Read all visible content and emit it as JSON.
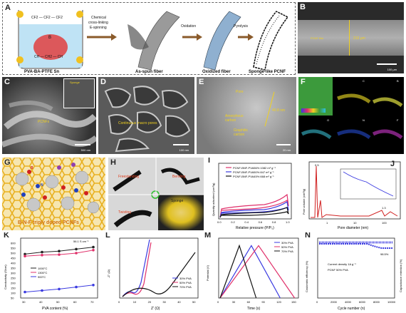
{
  "panels": {
    "A": {
      "label": "A",
      "step1": "Chemical\ncross-linking\nE-spinning",
      "step2": "Oxidation",
      "step3": "Pyrolysis",
      "caption1": "PVA-BA-PTFE Sn",
      "caption2": "As-spun fiber",
      "caption3": "Oxidized fiber",
      "caption4": "Sponge-like PCNF",
      "chem_top": "CF2 — CF2 — CF2",
      "chem_b": "B",
      "chem_bottom": "CH — CH2 — CH"
    },
    "B": {
      "label": "B",
      "film": "PCNF film",
      "thickness": "210 μm",
      "scale": "100 μm"
    },
    "C": {
      "label": "C",
      "tag": "PCNFs",
      "inset": "Sponge",
      "scale": "500 nm"
    },
    "D": {
      "label": "D",
      "tag": "Continuous macro pores",
      "scale": "100 nm"
    },
    "E": {
      "label": "E",
      "pore": "Pore",
      "amorph": "Amorphous\ncarbon",
      "graph": "Graphitic\ncarbon",
      "dist": "40.8 nm",
      "scale": "20 nm"
    },
    "F": {
      "label": "F",
      "c": "C",
      "b": "B",
      "o": "O",
      "n": "N",
      "f": "F"
    },
    "G": {
      "label": "G",
      "b": "B",
      "n": "N",
      "caption": "B-N-F triply doped PCNFs"
    },
    "H": {
      "label": "H",
      "t1": "Freestanding",
      "t2": "Bending",
      "t3": "Twisting",
      "t4": "Sponge"
    },
    "I": {
      "label": "I",
      "xlabel": "Relative pressure (P/P₀)",
      "ylabel": "Quantity adsorbed (cm³/g)",
      "legend": [
        {
          "name": "PCNF-BNF-PVA56% 1082 m² g⁻¹",
          "color": "#e0306a"
        },
        {
          "name": "PCNF-BNF-PVA50% 847 m² g⁻¹",
          "color": "#3a3ae0"
        },
        {
          "name": "PCNF-BNF-PVA45% 668 m² g⁻¹",
          "color": "#111111"
        }
      ],
      "xticks": [
        "0.0",
        "0.2",
        "0.4",
        "0.6",
        "0.8",
        "1.0"
      ]
    },
    "J": {
      "label": "J",
      "xlabel": "Pore diameter (nm)",
      "ylabel": "Pore volume (cm³/g)",
      "peak1": "0.5",
      "peak2": "1.3",
      "ticks": [
        "1",
        "10",
        "100"
      ]
    },
    "K": {
      "label": "K",
      "xlabel": "PVA content (%)",
      "ylabel": "Conductivity (S/cm)",
      "annotation": "56.1 S cm⁻¹",
      "legend": [
        "1000°C",
        "1300°C",
        "900°C"
      ],
      "xticks": [
        "30",
        "40",
        "50",
        "60",
        "70"
      ],
      "yticks": [
        "50",
        "100",
        "150",
        "200",
        "250",
        "300",
        "350",
        "400",
        "450",
        "500",
        "550",
        "600"
      ]
    },
    "L": {
      "label": "L",
      "xlabel": "Z' (Ω)",
      "ylabel": "-Z'' (Ω)",
      "legend": [
        "30% PVA",
        "50% PVA",
        "70% PVA"
      ],
      "xticks": [
        "0",
        "10",
        "20",
        "30",
        "40",
        "50"
      ]
    },
    "M": {
      "label": "M",
      "xlabel": "Time (s)",
      "ylabel": "Potential (V)",
      "legend": [
        "30% PVA",
        "50% PVA",
        "70% PVA"
      ],
      "xticks": [
        "0",
        "30",
        "60",
        "90",
        "120",
        "150"
      ]
    },
    "N": {
      "label": "N",
      "xlabel": "Cycle number (n)",
      "ylabel": "Coulombic efficiency (%)",
      "ylabel2": "Capacitance retention (%)",
      "annot1": "Current density 1A g⁻¹",
      "annot2": "PCNF 50% PVA",
      "annot3": "98.5%",
      "xticks": [
        "0",
        "2000",
        "4000",
        "6000",
        "8000",
        "10000"
      ]
    }
  },
  "chart_data": [
    {
      "panel": "K",
      "type": "line",
      "x": [
        30,
        40,
        50,
        60,
        70
      ],
      "xlabel": "PVA content (%)",
      "ylabel": "Conductivity (S/cm)",
      "ylim": [
        50,
        650
      ],
      "series": [
        {
          "name": "1000°C",
          "color": "#222222",
          "values": [
            490,
            510,
            520,
            540,
            560
          ]
        },
        {
          "name": "1300°C",
          "color": "#e0306a",
          "values": [
            470,
            480,
            485,
            500,
            530
          ]
        },
        {
          "name": "900°C",
          "color": "#3a3ae0",
          "values": [
            110,
            125,
            140,
            160,
            180
          ]
        }
      ]
    },
    {
      "panel": "M",
      "type": "line",
      "xlabel": "Time (s)",
      "ylabel": "Potential (V)",
      "ylim": [
        0,
        4
      ],
      "series": [
        {
          "name": "30% PVA",
          "color": "#3a3ae0",
          "x": [
            0,
            65,
            125
          ],
          "values": [
            0,
            3.5,
            0
          ]
        },
        {
          "name": "50% PVA",
          "color": "#e0306a",
          "x": [
            0,
            80,
            155
          ],
          "values": [
            0,
            3.5,
            0
          ]
        },
        {
          "name": "70% PVA",
          "color": "#111111",
          "x": [
            0,
            40,
            75
          ],
          "values": [
            0,
            3.5,
            0
          ]
        }
      ]
    }
  ]
}
